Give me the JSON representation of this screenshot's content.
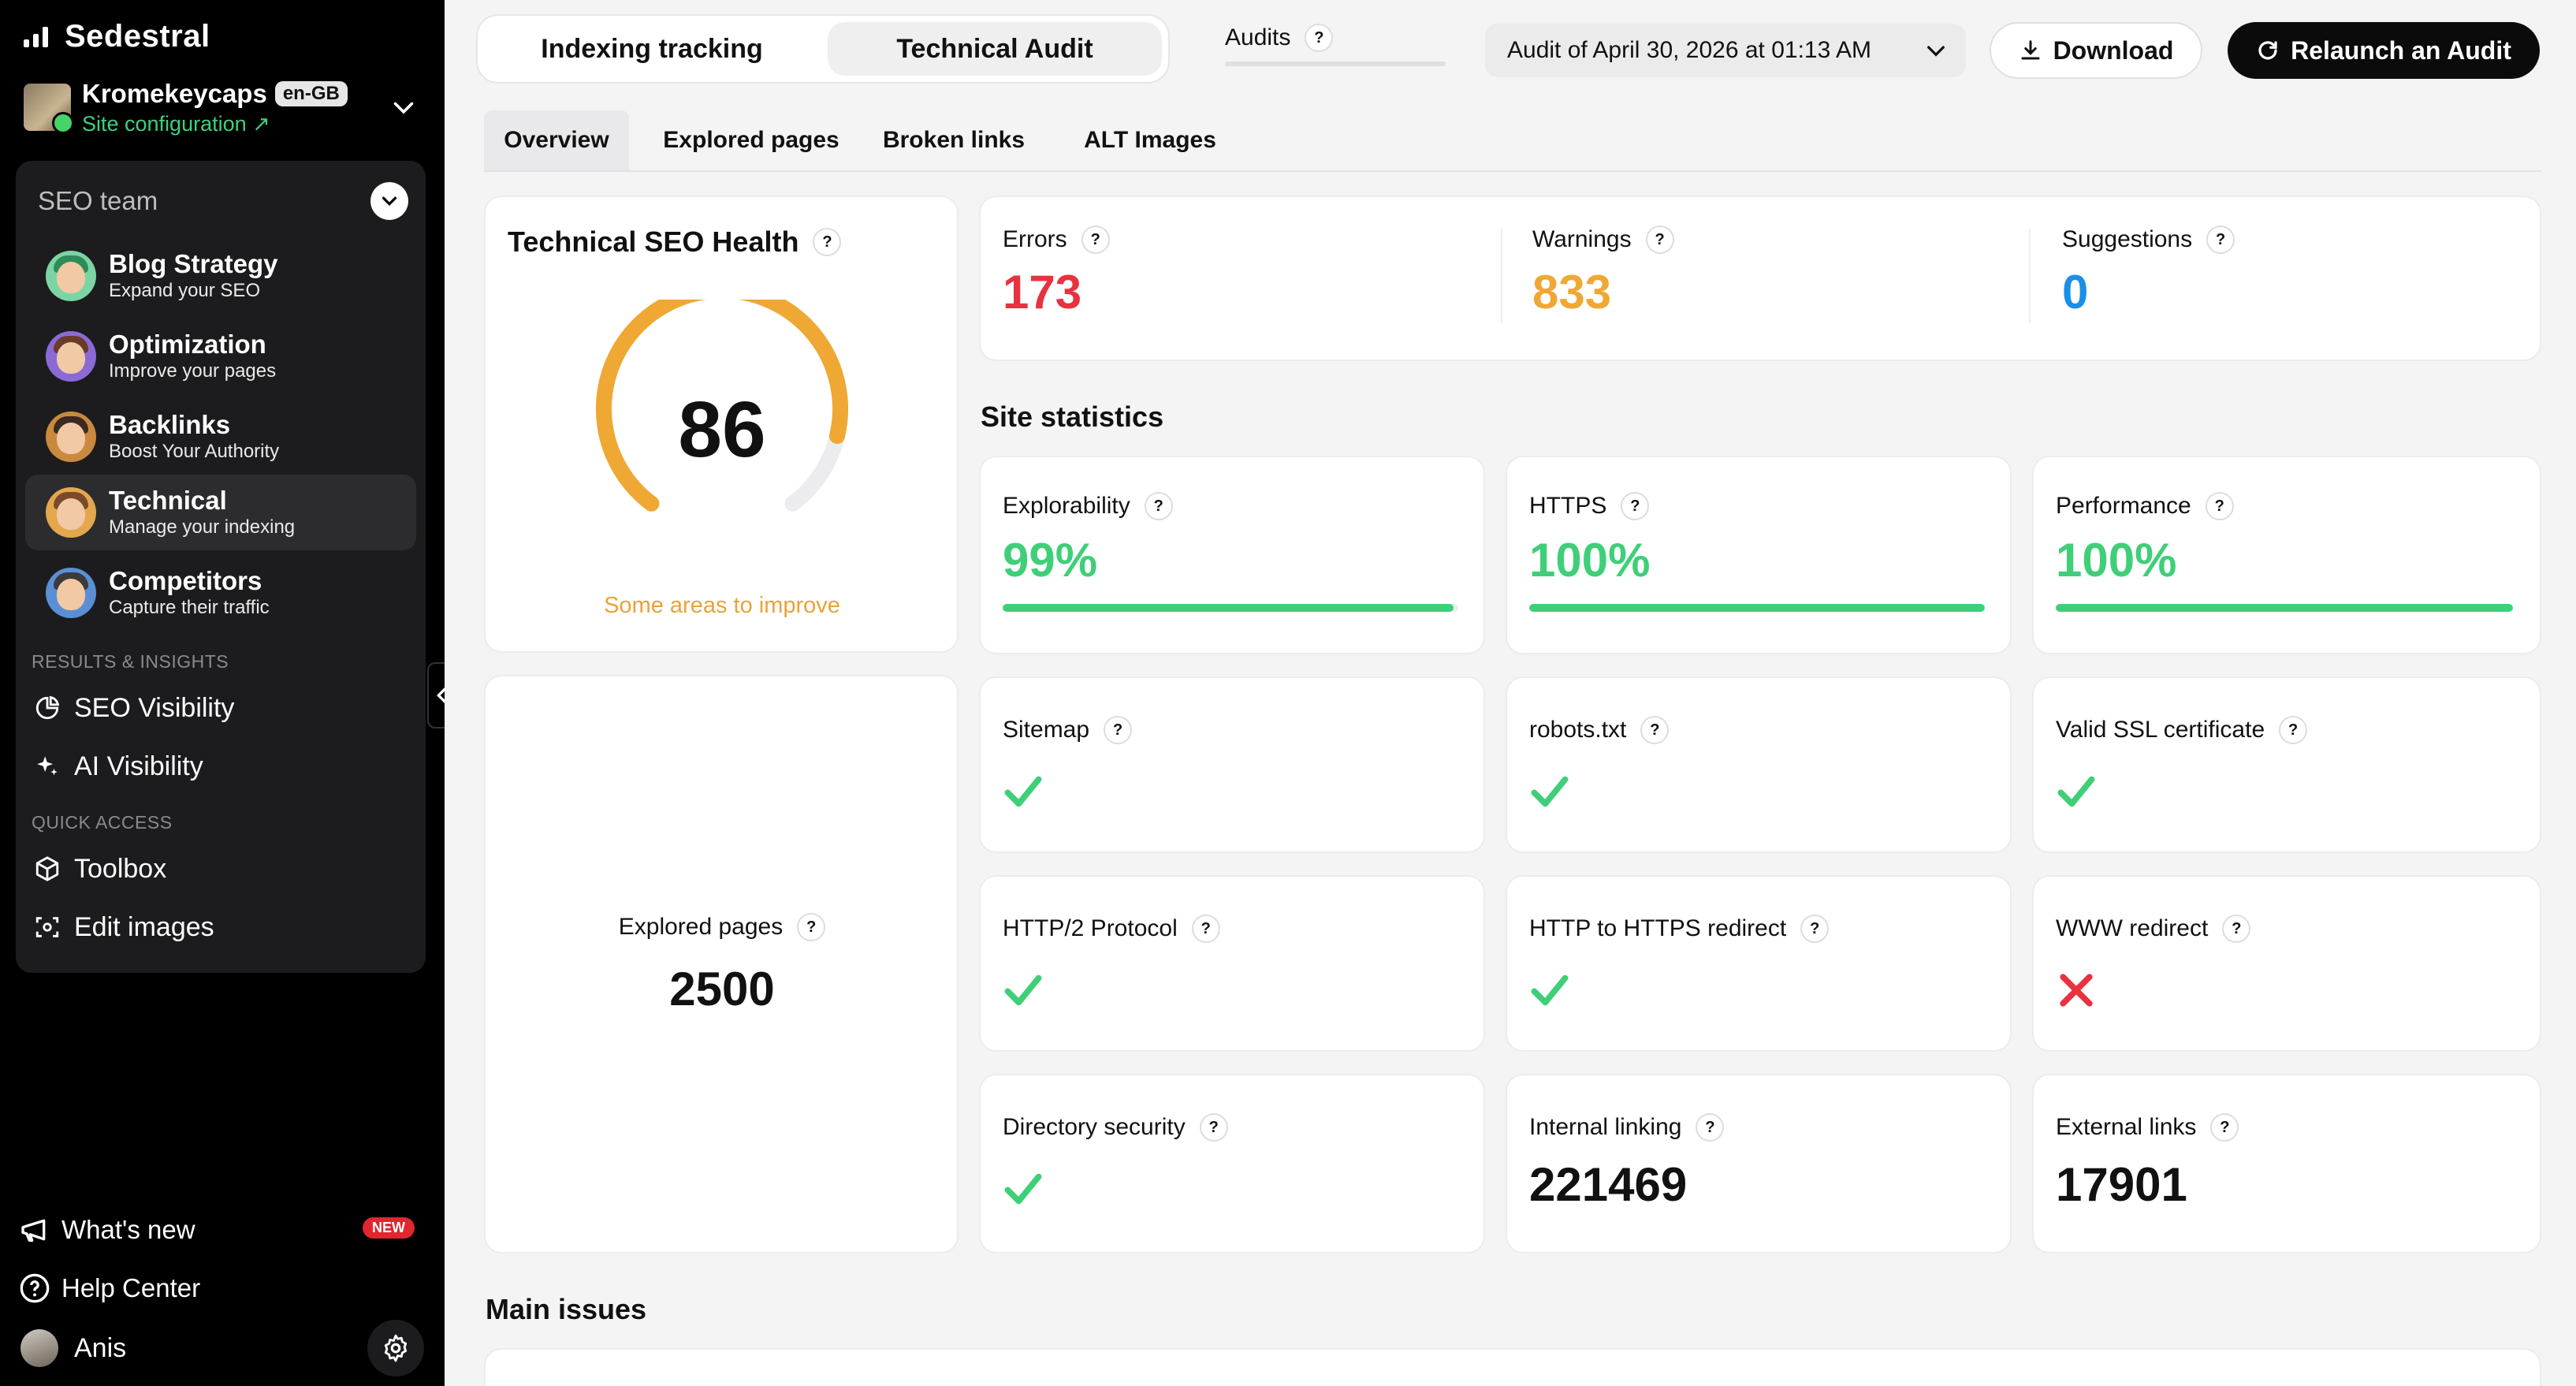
{
  "app": {
    "name": "Sedestral"
  },
  "site": {
    "name": "Kromekeycaps",
    "lang": "en-GB",
    "config_label": "Site configuration ↗"
  },
  "team": {
    "label": "SEO team",
    "agents": [
      {
        "title": "Blog Strategy",
        "subtitle": "Expand your SEO",
        "hair": "#2f8b5a",
        "ring": "#7bd4a3"
      },
      {
        "title": "Optimization",
        "subtitle": "Improve your pages",
        "hair": "#6b3b2a",
        "ring": "#8b6ad6"
      },
      {
        "title": "Backlinks",
        "subtitle": "Boost Your Authority",
        "hair": "#3a2a22",
        "ring": "#c9893f"
      },
      {
        "title": "Technical",
        "subtitle": "Manage your indexing",
        "hair": "#7a4a2a",
        "ring": "#e3a74e"
      },
      {
        "title": "Competitors",
        "subtitle": "Capture their traffic",
        "hair": "#3b3b3b",
        "ring": "#5a8fd6"
      }
    ]
  },
  "sections": {
    "results_label": "RESULTS & INSIGHTS",
    "seo_visibility": "SEO Visibility",
    "ai_visibility": "AI Visibility",
    "quick_label": "QUICK ACCESS",
    "toolbox": "Toolbox",
    "edit_images": "Edit images"
  },
  "bottom": {
    "whats_new": "What's new",
    "new_badge": "NEW",
    "help": "Help Center",
    "user": "Anis"
  },
  "header": {
    "tab_indexing": "Indexing tracking",
    "tab_audit": "Technical Audit",
    "audits_label": "Audits",
    "audit_select": "Audit of April 30, 2026 at 01:13 AM",
    "download": "Download",
    "relaunch": "Relaunch an Audit"
  },
  "subtabs": [
    "Overview",
    "Explored pages",
    "Broken links",
    "ALT Images"
  ],
  "health": {
    "title": "Technical SEO Health",
    "score": "86",
    "score_fraction": 0.86,
    "status": "Some areas to improve"
  },
  "issues": {
    "errors": {
      "label": "Errors",
      "value": "173",
      "color": "#e8323f"
    },
    "warnings": {
      "label": "Warnings",
      "value": "833",
      "color": "#efa833"
    },
    "suggestions": {
      "label": "Suggestions",
      "value": "0",
      "color": "#1a8fe8"
    }
  },
  "site_statistics": {
    "title": "Site statistics",
    "percent_stats": [
      {
        "label": "Explorability",
        "value": "99%",
        "fraction": 0.99
      },
      {
        "label": "HTTPS",
        "value": "100%",
        "fraction": 1.0
      },
      {
        "label": "Performance",
        "value": "100%",
        "fraction": 1.0
      }
    ],
    "checks": [
      {
        "label": "Sitemap",
        "ok": true
      },
      {
        "label": "robots.txt",
        "ok": true
      },
      {
        "label": "Valid SSL certificate",
        "ok": true
      },
      {
        "label": "HTTP/2 Protocol",
        "ok": true
      },
      {
        "label": "HTTP to HTTPS redirect",
        "ok": true
      },
      {
        "label": "WWW redirect",
        "ok": false
      },
      {
        "label": "Directory security",
        "ok": true
      }
    ],
    "internal_linking": {
      "label": "Internal linking",
      "value": "221469"
    },
    "external_links": {
      "label": "External links",
      "value": "17901"
    }
  },
  "explored_pages": {
    "label": "Explored pages",
    "value": "2500"
  },
  "main_issues": {
    "title": "Main issues"
  },
  "colors": {
    "accent_green": "#3fcf78",
    "gauge": "#efa833",
    "danger": "#e8323f"
  }
}
